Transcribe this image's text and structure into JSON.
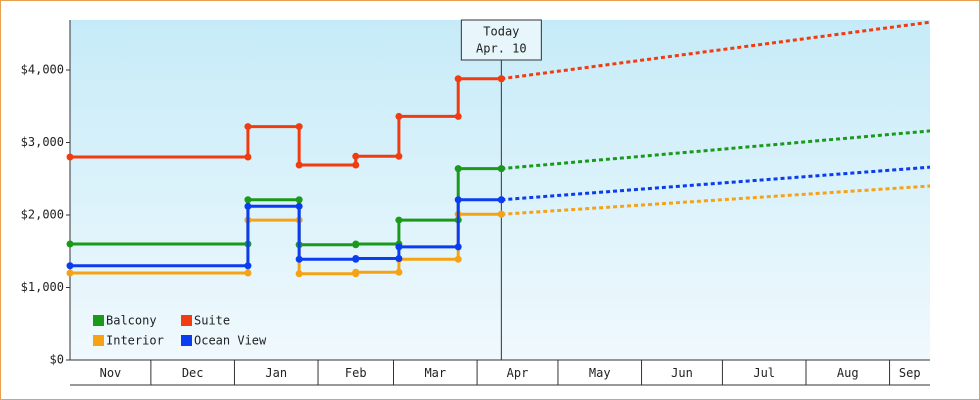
{
  "chart_data": {
    "type": "step-line",
    "x": [
      0,
      66,
      85,
      106,
      122,
      144,
      160
    ],
    "forecast_x": [
      160,
      319
    ],
    "xlim": [
      0,
      319
    ],
    "xticks": [
      {
        "value": 0,
        "label": "Nov"
      },
      {
        "value": 30,
        "label": "Dec"
      },
      {
        "value": 61,
        "label": "Jan"
      },
      {
        "value": 92,
        "label": "Feb"
      },
      {
        "value": 120,
        "label": "Mar"
      },
      {
        "value": 151,
        "label": "Apr"
      },
      {
        "value": 181,
        "label": "May"
      },
      {
        "value": 212,
        "label": "Jun"
      },
      {
        "value": 242,
        "label": "Jul"
      },
      {
        "value": 273,
        "label": "Aug"
      },
      {
        "value": 304,
        "label": "Sep"
      }
    ],
    "ylim": [
      0,
      4690
    ],
    "yticks": [
      {
        "value": 0,
        "label": "$0"
      },
      {
        "value": 1000,
        "label": "$1,000"
      },
      {
        "value": 2000,
        "label": "$2,000"
      },
      {
        "value": 3000,
        "label": "$3,000"
      },
      {
        "value": 4000,
        "label": "$4,000"
      }
    ],
    "series": [
      {
        "name": "Balcony",
        "color": "#1a9a1a",
        "values": [
          1600,
          2210,
          1590,
          1600,
          1930,
          2640,
          2640
        ],
        "forecast_values": [
          2640,
          3160
        ]
      },
      {
        "name": "Suite",
        "color": "#f03c10",
        "values": [
          2800,
          3220,
          2690,
          2810,
          3360,
          3880,
          3880
        ],
        "forecast_values": [
          3880,
          4660
        ]
      },
      {
        "name": "Interior",
        "color": "#f5a314",
        "values": [
          1200,
          1930,
          1190,
          1210,
          1390,
          2010,
          2010
        ],
        "forecast_values": [
          2010,
          2400
        ]
      },
      {
        "name": "Ocean View",
        "color": "#0a3cf0",
        "values": [
          1300,
          2120,
          1390,
          1400,
          1560,
          2210,
          2210
        ],
        "forecast_values": [
          2210,
          2660
        ]
      }
    ],
    "annotation": {
      "x": 160,
      "lines": [
        "Today",
        "Apr. 10"
      ]
    }
  }
}
